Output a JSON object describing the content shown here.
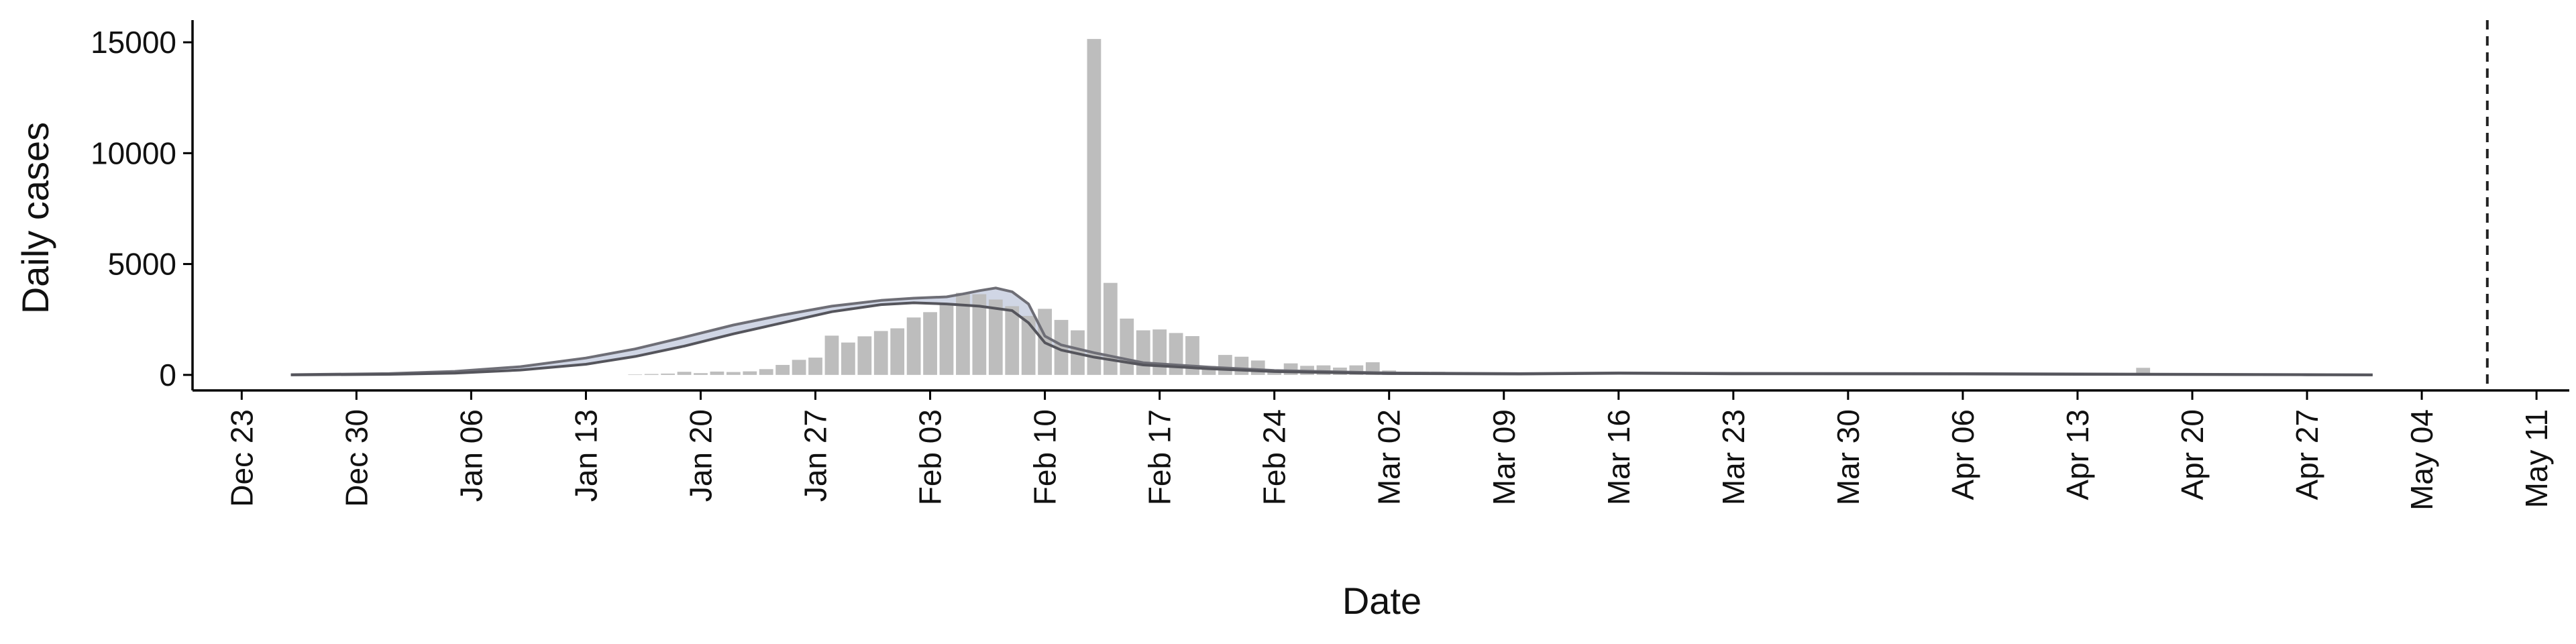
{
  "chart_data": {
    "type": "bar",
    "xlabel": "Date",
    "ylabel": "Daily cases",
    "x_type": "date",
    "xlim": [
      "2019-12-20",
      "2020-05-13"
    ],
    "ylim": [
      -700,
      16000
    ],
    "y_ticks": [
      0,
      5000,
      10000,
      15000
    ],
    "x_ticks": [
      {
        "date": "2019-12-23",
        "label": "Dec 23"
      },
      {
        "date": "2019-12-30",
        "label": "Dec 30"
      },
      {
        "date": "2020-01-06",
        "label": "Jan 06"
      },
      {
        "date": "2020-01-13",
        "label": "Jan 13"
      },
      {
        "date": "2020-01-20",
        "label": "Jan 20"
      },
      {
        "date": "2020-01-27",
        "label": "Jan 27"
      },
      {
        "date": "2020-02-03",
        "label": "Feb 03"
      },
      {
        "date": "2020-02-10",
        "label": "Feb 10"
      },
      {
        "date": "2020-02-17",
        "label": "Feb 17"
      },
      {
        "date": "2020-02-24",
        "label": "Feb 24"
      },
      {
        "date": "2020-03-02",
        "label": "Mar 02"
      },
      {
        "date": "2020-03-09",
        "label": "Mar 09"
      },
      {
        "date": "2020-03-16",
        "label": "Mar 16"
      },
      {
        "date": "2020-03-23",
        "label": "Mar 23"
      },
      {
        "date": "2020-03-30",
        "label": "Mar 30"
      },
      {
        "date": "2020-04-06",
        "label": "Apr 06"
      },
      {
        "date": "2020-04-13",
        "label": "Apr 13"
      },
      {
        "date": "2020-04-20",
        "label": "Apr 20"
      },
      {
        "date": "2020-04-27",
        "label": "Apr 27"
      },
      {
        "date": "2020-05-04",
        "label": "May 04"
      },
      {
        "date": "2020-05-11",
        "label": "May 11"
      }
    ],
    "vline": {
      "date": "2020-05-08",
      "style": "dashed",
      "color": "#222222"
    },
    "grid": false,
    "bars": {
      "color": "#bdbdbd",
      "data": [
        [
          "2020-01-16",
          20
        ],
        [
          "2020-01-17",
          40
        ],
        [
          "2020-01-18",
          60
        ],
        [
          "2020-01-19",
          140
        ],
        [
          "2020-01-20",
          80
        ],
        [
          "2020-01-21",
          150
        ],
        [
          "2020-01-22",
          130
        ],
        [
          "2020-01-23",
          160
        ],
        [
          "2020-01-24",
          260
        ],
        [
          "2020-01-25",
          450
        ],
        [
          "2020-01-26",
          680
        ],
        [
          "2020-01-27",
          780
        ],
        [
          "2020-01-28",
          1770
        ],
        [
          "2020-01-29",
          1460
        ],
        [
          "2020-01-30",
          1740
        ],
        [
          "2020-01-31",
          1980
        ],
        [
          "2020-02-01",
          2100
        ],
        [
          "2020-02-02",
          2590
        ],
        [
          "2020-02-03",
          2830
        ],
        [
          "2020-02-04",
          3240
        ],
        [
          "2020-02-05",
          3700
        ],
        [
          "2020-02-06",
          3640
        ],
        [
          "2020-02-07",
          3400
        ],
        [
          "2020-02-08",
          3100
        ],
        [
          "2020-02-09",
          2660
        ],
        [
          "2020-02-10",
          2980
        ],
        [
          "2020-02-11",
          2480
        ],
        [
          "2020-02-12",
          2010
        ],
        [
          "2020-02-13",
          15150
        ],
        [
          "2020-02-14",
          4150
        ],
        [
          "2020-02-15",
          2540
        ],
        [
          "2020-02-16",
          2010
        ],
        [
          "2020-02-17",
          2050
        ],
        [
          "2020-02-18",
          1890
        ],
        [
          "2020-02-19",
          1750
        ],
        [
          "2020-02-20",
          400
        ],
        [
          "2020-02-21",
          900
        ],
        [
          "2020-02-22",
          820
        ],
        [
          "2020-02-23",
          650
        ],
        [
          "2020-02-24",
          220
        ],
        [
          "2020-02-25",
          520
        ],
        [
          "2020-02-26",
          410
        ],
        [
          "2020-02-27",
          430
        ],
        [
          "2020-02-28",
          330
        ],
        [
          "2020-02-29",
          430
        ],
        [
          "2020-03-01",
          570
        ],
        [
          "2020-03-02",
          200
        ],
        [
          "2020-03-03",
          120
        ],
        [
          "2020-03-04",
          140
        ],
        [
          "2020-03-05",
          140
        ],
        [
          "2020-03-06",
          100
        ],
        [
          "2020-03-07",
          100
        ],
        [
          "2020-03-08",
          50
        ],
        [
          "2020-03-09",
          40
        ],
        [
          "2020-03-10",
          30
        ],
        [
          "2020-03-11",
          20
        ],
        [
          "2020-03-12",
          15
        ],
        [
          "2020-03-13",
          10
        ],
        [
          "2020-04-17",
          320
        ]
      ]
    },
    "series": [
      {
        "kind": "upper-line",
        "color": "#6e6e76",
        "points": [
          [
            "2019-12-26",
            10
          ],
          [
            "2020-01-01",
            60
          ],
          [
            "2020-01-05",
            160
          ],
          [
            "2020-01-09",
            370
          ],
          [
            "2020-01-13",
            760
          ],
          [
            "2020-01-16",
            1170
          ],
          [
            "2020-01-19",
            1700
          ],
          [
            "2020-01-22",
            2250
          ],
          [
            "2020-01-25",
            2700
          ],
          [
            "2020-01-28",
            3100
          ],
          [
            "2020-01-31",
            3360
          ],
          [
            "2020-02-02",
            3460
          ],
          [
            "2020-02-04",
            3520
          ],
          [
            "2020-02-05",
            3650
          ],
          [
            "2020-02-06",
            3800
          ],
          [
            "2020-02-07",
            3920
          ],
          [
            "2020-02-08",
            3750
          ],
          [
            "2020-02-09",
            3200
          ],
          [
            "2020-02-10",
            1750
          ],
          [
            "2020-02-11",
            1350
          ],
          [
            "2020-02-13",
            1000
          ],
          [
            "2020-02-16",
            550
          ],
          [
            "2020-02-20",
            350
          ],
          [
            "2020-02-24",
            200
          ],
          [
            "2020-03-02",
            90
          ],
          [
            "2020-03-10",
            60
          ],
          [
            "2020-03-16",
            90
          ],
          [
            "2020-03-23",
            70
          ],
          [
            "2020-04-06",
            60
          ],
          [
            "2020-04-13",
            45
          ],
          [
            "2020-04-27",
            15
          ],
          [
            "2020-05-01",
            5
          ]
        ]
      },
      {
        "kind": "lower-line",
        "color": "#55555c",
        "points": [
          [
            "2019-12-26",
            0
          ],
          [
            "2020-01-01",
            25
          ],
          [
            "2020-01-05",
            80
          ],
          [
            "2020-01-09",
            220
          ],
          [
            "2020-01-13",
            480
          ],
          [
            "2020-01-16",
            830
          ],
          [
            "2020-01-19",
            1300
          ],
          [
            "2020-01-22",
            1850
          ],
          [
            "2020-01-25",
            2350
          ],
          [
            "2020-01-28",
            2850
          ],
          [
            "2020-01-31",
            3170
          ],
          [
            "2020-02-02",
            3250
          ],
          [
            "2020-02-04",
            3200
          ],
          [
            "2020-02-06",
            3100
          ],
          [
            "2020-02-08",
            2900
          ],
          [
            "2020-02-09",
            2350
          ],
          [
            "2020-02-10",
            1450
          ],
          [
            "2020-02-11",
            1120
          ],
          [
            "2020-02-13",
            800
          ],
          [
            "2020-02-16",
            450
          ],
          [
            "2020-02-20",
            280
          ],
          [
            "2020-02-24",
            150
          ],
          [
            "2020-03-02",
            60
          ],
          [
            "2020-03-10",
            40
          ],
          [
            "2020-03-16",
            70
          ],
          [
            "2020-03-23",
            50
          ],
          [
            "2020-04-06",
            40
          ],
          [
            "2020-04-13",
            25
          ],
          [
            "2020-04-27",
            5
          ],
          [
            "2020-05-01",
            0
          ]
        ]
      }
    ],
    "band_color": "#aab4cf"
  }
}
